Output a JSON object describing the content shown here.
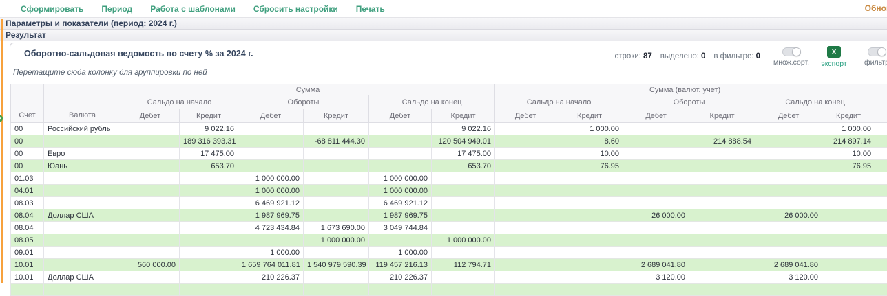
{
  "menu": {
    "items": [
      {
        "label": "Сформировать"
      },
      {
        "label": "Период"
      },
      {
        "label": "Работа с шаблонами"
      },
      {
        "label": "Сбросить настройки"
      },
      {
        "label": "Печать"
      }
    ],
    "refresh_label": "Обновить"
  },
  "sections": {
    "parameters_title": "Параметры и показатели (период: 2024 г.)",
    "result_title": "Результат"
  },
  "report": {
    "title": "Оборотно-сальдовая ведомость по счету % за 2024 г.",
    "drag_hint": "Перетащите сюда колонку для группировки по ней",
    "stats": [
      {
        "label": "строки:",
        "value": "87"
      },
      {
        "label": "выделено:",
        "value": "0"
      },
      {
        "label": "в фильтре:",
        "value": "0"
      }
    ],
    "controls": {
      "multisort_label": "множ.сорт.",
      "export_label": "экспорт",
      "export_icon": "X",
      "filter_label": "фильтр"
    }
  },
  "grid": {
    "col_account": "Счет",
    "col_currency": "Валюта",
    "groups": [
      {
        "label": "Сумма"
      },
      {
        "label": "Сумма (валют. учет)"
      }
    ],
    "subgroups": [
      "Сальдо на начало",
      "Обороты",
      "Сальдо на конец"
    ],
    "debit": "Дебет",
    "credit": "Кредит",
    "rows": [
      {
        "account": "00",
        "currency": "Российский рубль",
        "cells": [
          "",
          "9 022.16",
          "",
          "",
          "",
          "9 022.16",
          "",
          "1 000.00",
          "",
          "",
          "",
          "1 000.00"
        ]
      },
      {
        "account": "00",
        "currency": "",
        "cells": [
          "",
          "189 316 393.31",
          "",
          "-68 811 444.30",
          "",
          "120 504 949.01",
          "",
          "8.60",
          "",
          "214 888.54",
          "",
          "214 897.14"
        ]
      },
      {
        "account": "00",
        "currency": "Евро",
        "cells": [
          "",
          "17 475.00",
          "",
          "",
          "",
          "17 475.00",
          "",
          "10.00",
          "",
          "",
          "",
          "10.00"
        ]
      },
      {
        "account": "00",
        "currency": "Юань",
        "cells": [
          "",
          "653.70",
          "",
          "",
          "",
          "653.70",
          "",
          "76.95",
          "",
          "",
          "",
          "76.95"
        ]
      },
      {
        "account": "01.03",
        "currency": "",
        "cells": [
          "",
          "",
          "1 000 000.00",
          "",
          "1 000 000.00",
          "",
          "",
          "",
          "",
          "",
          "",
          ""
        ]
      },
      {
        "account": "04.01",
        "currency": "",
        "cells": [
          "",
          "",
          "1 000 000.00",
          "",
          "1 000 000.00",
          "",
          "",
          "",
          "",
          "",
          "",
          ""
        ]
      },
      {
        "account": "08.03",
        "currency": "",
        "cells": [
          "",
          "",
          "6 469 921.12",
          "",
          "6 469 921.12",
          "",
          "",
          "",
          "",
          "",
          "",
          ""
        ]
      },
      {
        "account": "08.04",
        "currency": "Доллар США",
        "cells": [
          "",
          "",
          "1 987 969.75",
          "",
          "1 987 969.75",
          "",
          "",
          "",
          "26 000.00",
          "",
          "26 000.00",
          ""
        ]
      },
      {
        "account": "08.04",
        "currency": "",
        "cells": [
          "",
          "",
          "4 723 434.84",
          "1 673 690.00",
          "3 049 744.84",
          "",
          "",
          "",
          "",
          "",
          "",
          ""
        ]
      },
      {
        "account": "08.05",
        "currency": "",
        "cells": [
          "",
          "",
          "",
          "1 000 000.00",
          "",
          "1 000 000.00",
          "",
          "",
          "",
          "",
          "",
          ""
        ]
      },
      {
        "account": "09.01",
        "currency": "",
        "cells": [
          "",
          "",
          "1 000.00",
          "",
          "1 000.00",
          "",
          "",
          "",
          "",
          "",
          "",
          ""
        ]
      },
      {
        "account": "10.01",
        "currency": "",
        "cells": [
          "560 000.00",
          "",
          "1 659 764 011.81",
          "1 540 979 590.39",
          "119 457 216.13",
          "112 794.71",
          "",
          "",
          "2 689 041.80",
          "",
          "2 689 041.80",
          ""
        ]
      },
      {
        "account": "10.01",
        "currency": "Доллар США",
        "cells": [
          "",
          "",
          "210 226.37",
          "",
          "210 226.37",
          "",
          "",
          "",
          "3 120.00",
          "",
          "3 120.00",
          ""
        ]
      },
      {
        "account": "",
        "currency": "",
        "cells": [
          "",
          "",
          "",
          "",
          "",
          "",
          "",
          "",
          "",
          "",
          "",
          ""
        ]
      }
    ]
  },
  "colors": {
    "accent_orange": "#f7a13c",
    "row_green": "#d8f2ce",
    "link_green": "#3f9f7e",
    "export_green": "#1f7a46",
    "refresh_orange": "#c98a42"
  }
}
